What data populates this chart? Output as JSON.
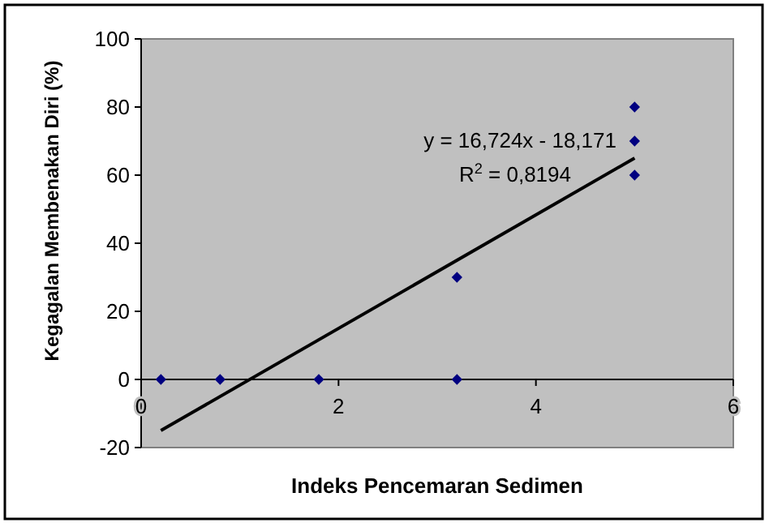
{
  "chart_data": {
    "type": "scatter",
    "xlabel": "Indeks Pencemaran Sedimen",
    "ylabel": "Kegagalan Membenakan Diri (%)",
    "xlim": [
      0,
      6
    ],
    "xticks": [
      0,
      2,
      4,
      6
    ],
    "ylim": [
      -20,
      100
    ],
    "yticks": [
      -20,
      0,
      20,
      40,
      60,
      80,
      100
    ],
    "grid": false,
    "marker": "diamond",
    "series": [
      {
        "color": "#000080",
        "x": [
          0.2,
          0.8,
          1.8,
          3.2,
          3.2,
          5,
          5,
          5
        ],
        "values": [
          0,
          0,
          0,
          0,
          30,
          60,
          70,
          80
        ]
      },
      {
        "type": "line",
        "color": "#000000",
        "x": [
          0.2,
          5
        ],
        "values": [
          -15,
          65
        ],
        "marker": "none"
      }
    ],
    "annotations": [
      "y = 16,724x - 18,171",
      "R$^{2}$ = 0,8194"
    ]
  }
}
